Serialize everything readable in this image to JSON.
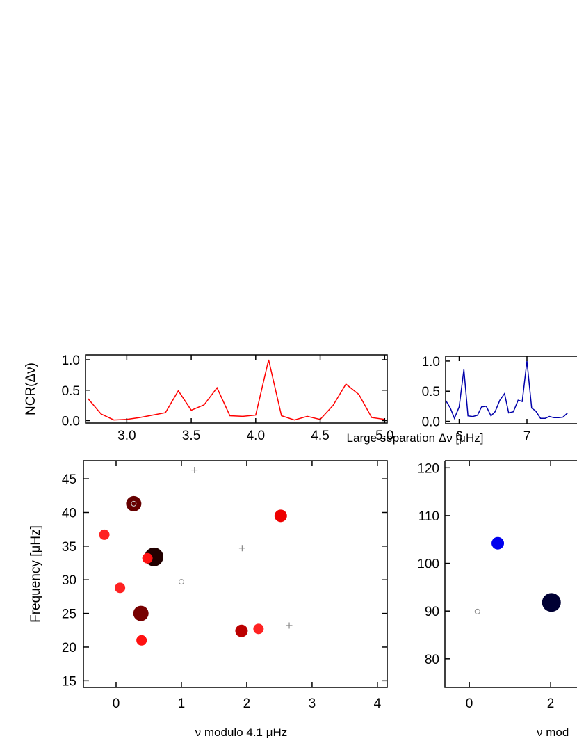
{
  "chart_data": [
    {
      "id": "ncr_left",
      "type": "line",
      "ylabel": "NCR(Δν)",
      "xlim": [
        2.68,
        5.02
      ],
      "ylim": [
        -0.04,
        1.08
      ],
      "xticks": [
        "3.0",
        "3.5",
        "4.0",
        "4.5",
        "5.0"
      ],
      "yticks": [
        "0.0",
        "0.5",
        "1.0"
      ],
      "color": "#ff0000",
      "series": [
        {
          "x": [
            2.7,
            2.8,
            2.9,
            3.0,
            3.1,
            3.2,
            3.3,
            3.4,
            3.5,
            3.6,
            3.7,
            3.8,
            3.9,
            4.0,
            4.1,
            4.2,
            4.3,
            4.4,
            4.5,
            4.6,
            4.7,
            4.8,
            4.9,
            5.0
          ],
          "y": [
            0.36,
            0.11,
            0.01,
            0.02,
            0.05,
            0.09,
            0.13,
            0.49,
            0.17,
            0.26,
            0.54,
            0.08,
            0.07,
            0.09,
            1.0,
            0.08,
            0.01,
            0.07,
            0.02,
            0.25,
            0.6,
            0.43,
            0.05,
            0.02
          ]
        }
      ]
    },
    {
      "id": "ncr_right",
      "type": "line",
      "xlabel": "Large separation Δν [μHz]",
      "xlim": [
        5.8,
        8.2
      ],
      "ylim": [
        -0.04,
        1.08
      ],
      "xticks": [
        "6",
        "7"
      ],
      "yticks": [
        "0.0",
        "0.5",
        "1.0"
      ],
      "color": "#0000aa",
      "series": [
        {
          "x": [
            5.8,
            5.87,
            5.93,
            6.0,
            6.07,
            6.13,
            6.2,
            6.27,
            6.33,
            6.4,
            6.47,
            6.53,
            6.6,
            6.67,
            6.73,
            6.8,
            6.87,
            6.93,
            7.0,
            7.07,
            7.13,
            7.2,
            7.27,
            7.33,
            7.4,
            7.47,
            7.53,
            7.6
          ],
          "y": [
            0.35,
            0.22,
            0.05,
            0.24,
            0.86,
            0.09,
            0.08,
            0.1,
            0.24,
            0.25,
            0.09,
            0.16,
            0.35,
            0.46,
            0.14,
            0.16,
            0.35,
            0.33,
            1.0,
            0.22,
            0.17,
            0.05,
            0.05,
            0.08,
            0.06,
            0.06,
            0.07,
            0.14
          ]
        }
      ]
    },
    {
      "id": "echelle_left",
      "type": "scatter",
      "xlabel": "ν  modulo 4.1 μHz",
      "ylabel": "Frequency [μHz]",
      "xlim": [
        -0.5,
        4.15
      ],
      "ylim": [
        14,
        47.7
      ],
      "xticks": [
        "0",
        "1",
        "2",
        "3",
        "4"
      ],
      "yticks": [
        "15",
        "20",
        "25",
        "30",
        "35",
        "40",
        "45"
      ],
      "grid": false,
      "points": [
        {
          "x": 0.27,
          "y": 41.3,
          "size": "large",
          "color": "#660000",
          "marker": "filled-circle"
        },
        {
          "x": 0.27,
          "y": 41.3,
          "size": "tiny",
          "color": "#cccccc",
          "marker": "open-circle"
        },
        {
          "x": -0.18,
          "y": 36.7,
          "size": "small",
          "color": "#ff2222",
          "marker": "filled-circle"
        },
        {
          "x": 0.58,
          "y": 33.4,
          "size": "xlarge",
          "color": "#220000",
          "marker": "filled-circle"
        },
        {
          "x": 0.48,
          "y": 33.2,
          "size": "small",
          "color": "#ff1111",
          "marker": "filled-circle"
        },
        {
          "x": 0.06,
          "y": 28.8,
          "size": "small",
          "color": "#ff2222",
          "marker": "filled-circle"
        },
        {
          "x": 0.38,
          "y": 25.0,
          "size": "large",
          "color": "#770000",
          "marker": "filled-circle"
        },
        {
          "x": 0.39,
          "y": 21.0,
          "size": "small",
          "color": "#ff1111",
          "marker": "filled-circle"
        },
        {
          "x": 1.0,
          "y": 29.7,
          "size": "tiny",
          "color": "#888888",
          "marker": "open-circle"
        },
        {
          "x": 1.2,
          "y": 46.3,
          "size": "tiny",
          "color": "#888888",
          "marker": "plus"
        },
        {
          "x": 1.93,
          "y": 34.7,
          "size": "tiny",
          "color": "#888888",
          "marker": "plus"
        },
        {
          "x": 2.65,
          "y": 23.2,
          "size": "tiny",
          "color": "#888888",
          "marker": "plus"
        },
        {
          "x": 2.52,
          "y": 39.5,
          "size": "medium",
          "color": "#ee0000",
          "marker": "filled-circle"
        },
        {
          "x": 1.92,
          "y": 22.4,
          "size": "medium",
          "color": "#bb0000",
          "marker": "filled-circle"
        },
        {
          "x": 2.18,
          "y": 22.7,
          "size": "small",
          "color": "#ff2222",
          "marker": "filled-circle"
        }
      ]
    },
    {
      "id": "echelle_right",
      "type": "scatter",
      "xlabel": "ν  mod",
      "xlim": [
        -0.6,
        3.4
      ],
      "ylim": [
        74,
        121.5
      ],
      "xticks": [
        "0",
        "2"
      ],
      "yticks": [
        "80",
        "90",
        "100",
        "110",
        "120"
      ],
      "grid": false,
      "points": [
        {
          "x": 0.7,
          "y": 104.2,
          "size": "medium",
          "color": "#0000ee",
          "marker": "filled-circle"
        },
        {
          "x": 2.02,
          "y": 91.8,
          "size": "xlarge",
          "color": "#000033",
          "marker": "filled-circle"
        },
        {
          "x": 0.2,
          "y": 89.9,
          "size": "tiny",
          "color": "#888888",
          "marker": "open-circle"
        }
      ]
    }
  ]
}
